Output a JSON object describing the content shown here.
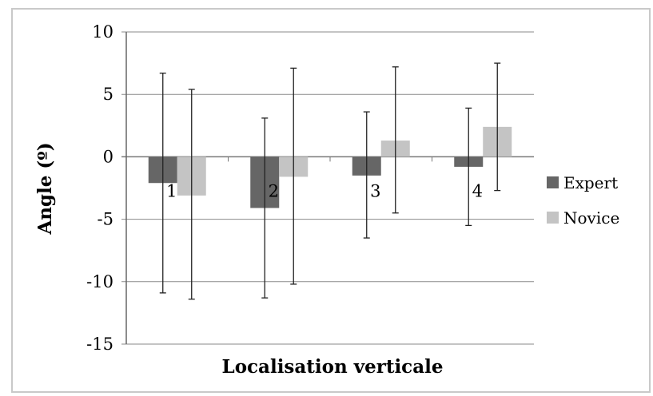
{
  "chart_data": {
    "type": "bar",
    "title": "",
    "xlabel": "Localisation verticale",
    "ylabel": "Angle (º)",
    "ylim": [
      -15,
      10
    ],
    "yticks": [
      10,
      5,
      0,
      -5,
      -10,
      -15
    ],
    "grid": true,
    "legend_position": "right",
    "categories": [
      "1",
      "2",
      "3",
      "4"
    ],
    "series": [
      {
        "name": "Expert",
        "color": "#666666",
        "values": [
          -2.1,
          -4.1,
          -1.5,
          -0.8
        ],
        "error_low": [
          -10.9,
          -11.3,
          -6.5,
          -5.5
        ],
        "error_high": [
          6.7,
          3.1,
          3.6,
          3.9
        ]
      },
      {
        "name": "Novice",
        "color": "#c4c4c4",
        "values": [
          -3.1,
          -1.6,
          1.3,
          2.4
        ],
        "error_low": [
          -11.4,
          -10.2,
          -4.5,
          -2.7
        ],
        "error_high": [
          5.4,
          7.1,
          7.2,
          7.5
        ]
      }
    ]
  }
}
